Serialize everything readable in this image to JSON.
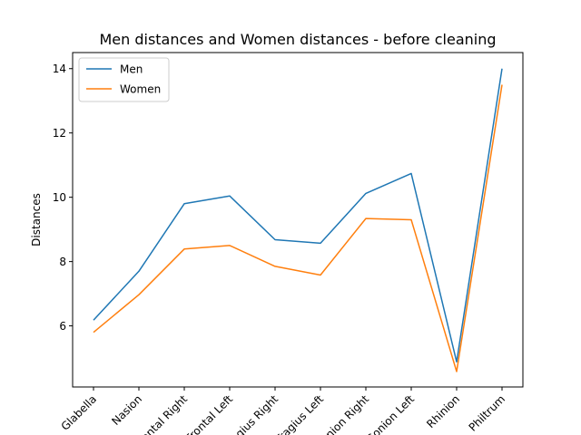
{
  "chart_data": {
    "type": "line",
    "title": "Men distances and Women distances - before cleaning",
    "xlabel": "",
    "ylabel": "Distances",
    "categories": [
      "Glabella",
      "Nasion",
      "Frontal Right",
      "Frontal Left",
      "Tragius Right",
      "Tragius Left",
      "Gonion Right",
      "Gonion Left",
      "Rhinion",
      "Philtrum"
    ],
    "series": [
      {
        "name": "Men",
        "color": "#1f77b4",
        "values": [
          6.18,
          7.7,
          9.8,
          10.04,
          8.68,
          8.57,
          10.12,
          10.74,
          4.88,
          14.0
        ]
      },
      {
        "name": "Women",
        "color": "#ff7f0e",
        "values": [
          5.8,
          6.97,
          8.39,
          8.5,
          7.85,
          7.58,
          9.34,
          9.3,
          4.58,
          13.5
        ]
      }
    ],
    "ylim": [
      4.1,
      14.5
    ],
    "yticks": [
      6,
      8,
      10,
      12,
      14
    ],
    "grid": false,
    "legend": "top-left"
  }
}
